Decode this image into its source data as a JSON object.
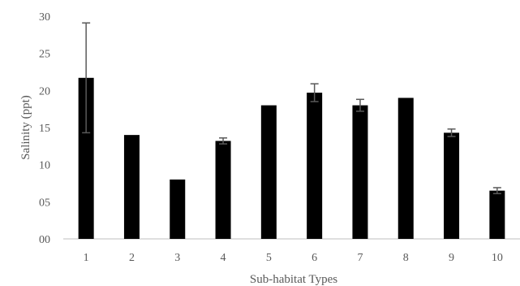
{
  "chart_data": {
    "type": "bar",
    "categories": [
      "1",
      "2",
      "3",
      "4",
      "5",
      "6",
      "7",
      "8",
      "9",
      "10"
    ],
    "values": [
      21.7,
      14.0,
      8.0,
      13.2,
      18.0,
      19.7,
      18.0,
      19.0,
      14.3,
      6.5
    ],
    "error": [
      7.4,
      null,
      null,
      0.4,
      null,
      1.2,
      0.8,
      null,
      0.5,
      0.4
    ],
    "xlabel": "Sub-habitat Types",
    "ylabel": "Salinity (ppt)",
    "ylim": [
      0,
      30
    ],
    "yticks": [
      "00",
      "05",
      "10",
      "15",
      "20",
      "25",
      "30"
    ],
    "grid": false,
    "bar_color": "#000000",
    "error_bar_color": "#595959"
  }
}
